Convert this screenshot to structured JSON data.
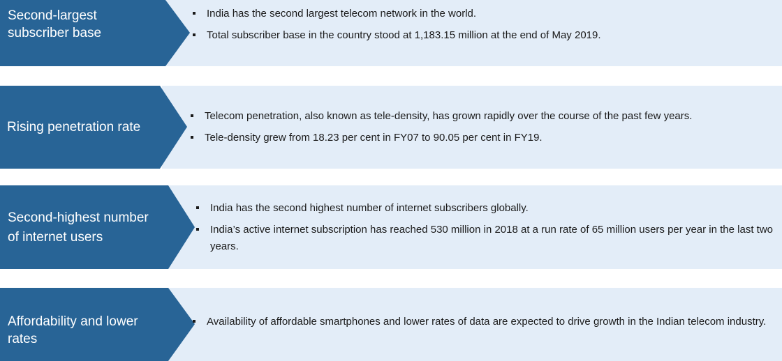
{
  "rows": [
    {
      "title_lines": [
        "Second-largest",
        "subscriber base"
      ],
      "bullets": [
        "India has the second largest telecom network in the world.",
        "Total subscriber base in the country stood at 1,183.15 million at the end of May 2019."
      ]
    },
    {
      "title_lines": [
        "Rising penetration rate"
      ],
      "bullets": [
        "Telecom penetration, also known as tele-density, has grown rapidly over the course of the past few years.",
        "Tele-density grew from 18.23 per cent in FY07 to 90.05 per cent in FY19."
      ]
    },
    {
      "title_lines": [
        "Second-highest number",
        "of internet users"
      ],
      "bullets": [
        "India has the second highest number of internet subscribers globally.",
        "India’s active internet subscription has reached 530 million in 2018 at a run rate of 65 million users per year in the last two years."
      ]
    },
    {
      "title_lines": [
        "Affordability and lower",
        "rates"
      ],
      "bullets": [
        "Availability of affordable smartphones and lower rates of data are expected to drive growth in the Indian telecom industry."
      ]
    }
  ],
  "colors": {
    "chevron": "#286496",
    "panel": "#e3edf8",
    "text": "#1a1a1a"
  }
}
